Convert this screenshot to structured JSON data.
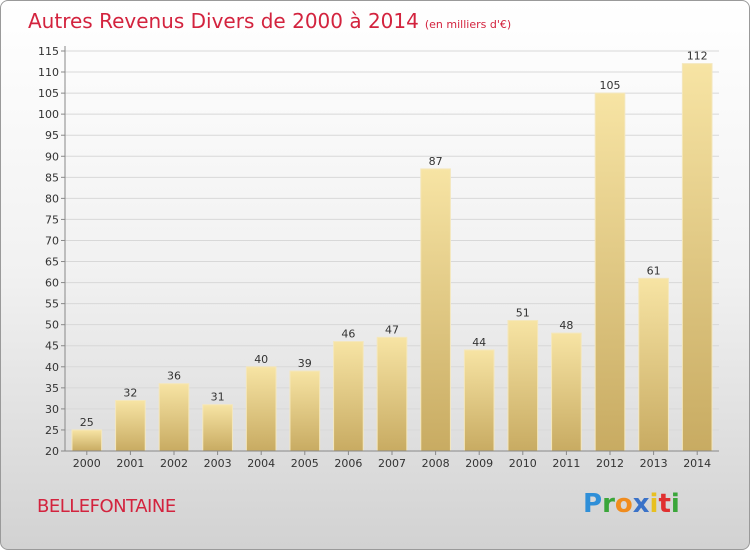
{
  "header": {
    "title": "Autres Revenus Divers de 2000 à 2014",
    "subtitle": "(en milliers d'€)"
  },
  "footer": {
    "city": "BELLEFONTAINE",
    "logo": {
      "text": "Proxiti",
      "letters": [
        "P",
        "r",
        "o",
        "x",
        "i",
        "t",
        "i"
      ],
      "colors": [
        "#2f8fd8",
        "#3aa63a",
        "#f08c1e",
        "#3a72c8",
        "#e8c020",
        "#e03030",
        "#3aa63a"
      ]
    }
  },
  "chart_data": {
    "type": "bar",
    "categories": [
      "2000",
      "2001",
      "2002",
      "2003",
      "2004",
      "2005",
      "2006",
      "2007",
      "2008",
      "2009",
      "2010",
      "2011",
      "2012",
      "2013",
      "2014"
    ],
    "values": [
      25,
      32,
      36,
      31,
      40,
      39,
      46,
      47,
      87,
      44,
      51,
      48,
      105,
      61,
      112
    ],
    "title": "Autres Revenus Divers de 2000 à 2014",
    "xlabel": "",
    "ylabel": "",
    "ylim": [
      20,
      115
    ],
    "yticks": [
      20,
      25,
      30,
      35,
      40,
      45,
      50,
      55,
      60,
      65,
      70,
      75,
      80,
      85,
      90,
      95,
      100,
      105,
      110,
      115
    ],
    "grid": true,
    "colors": {
      "bar_top": "#f7e4a4",
      "bar_bottom": "#c8ab62",
      "grid": "#d8d8d8",
      "axis": "#888888"
    }
  }
}
